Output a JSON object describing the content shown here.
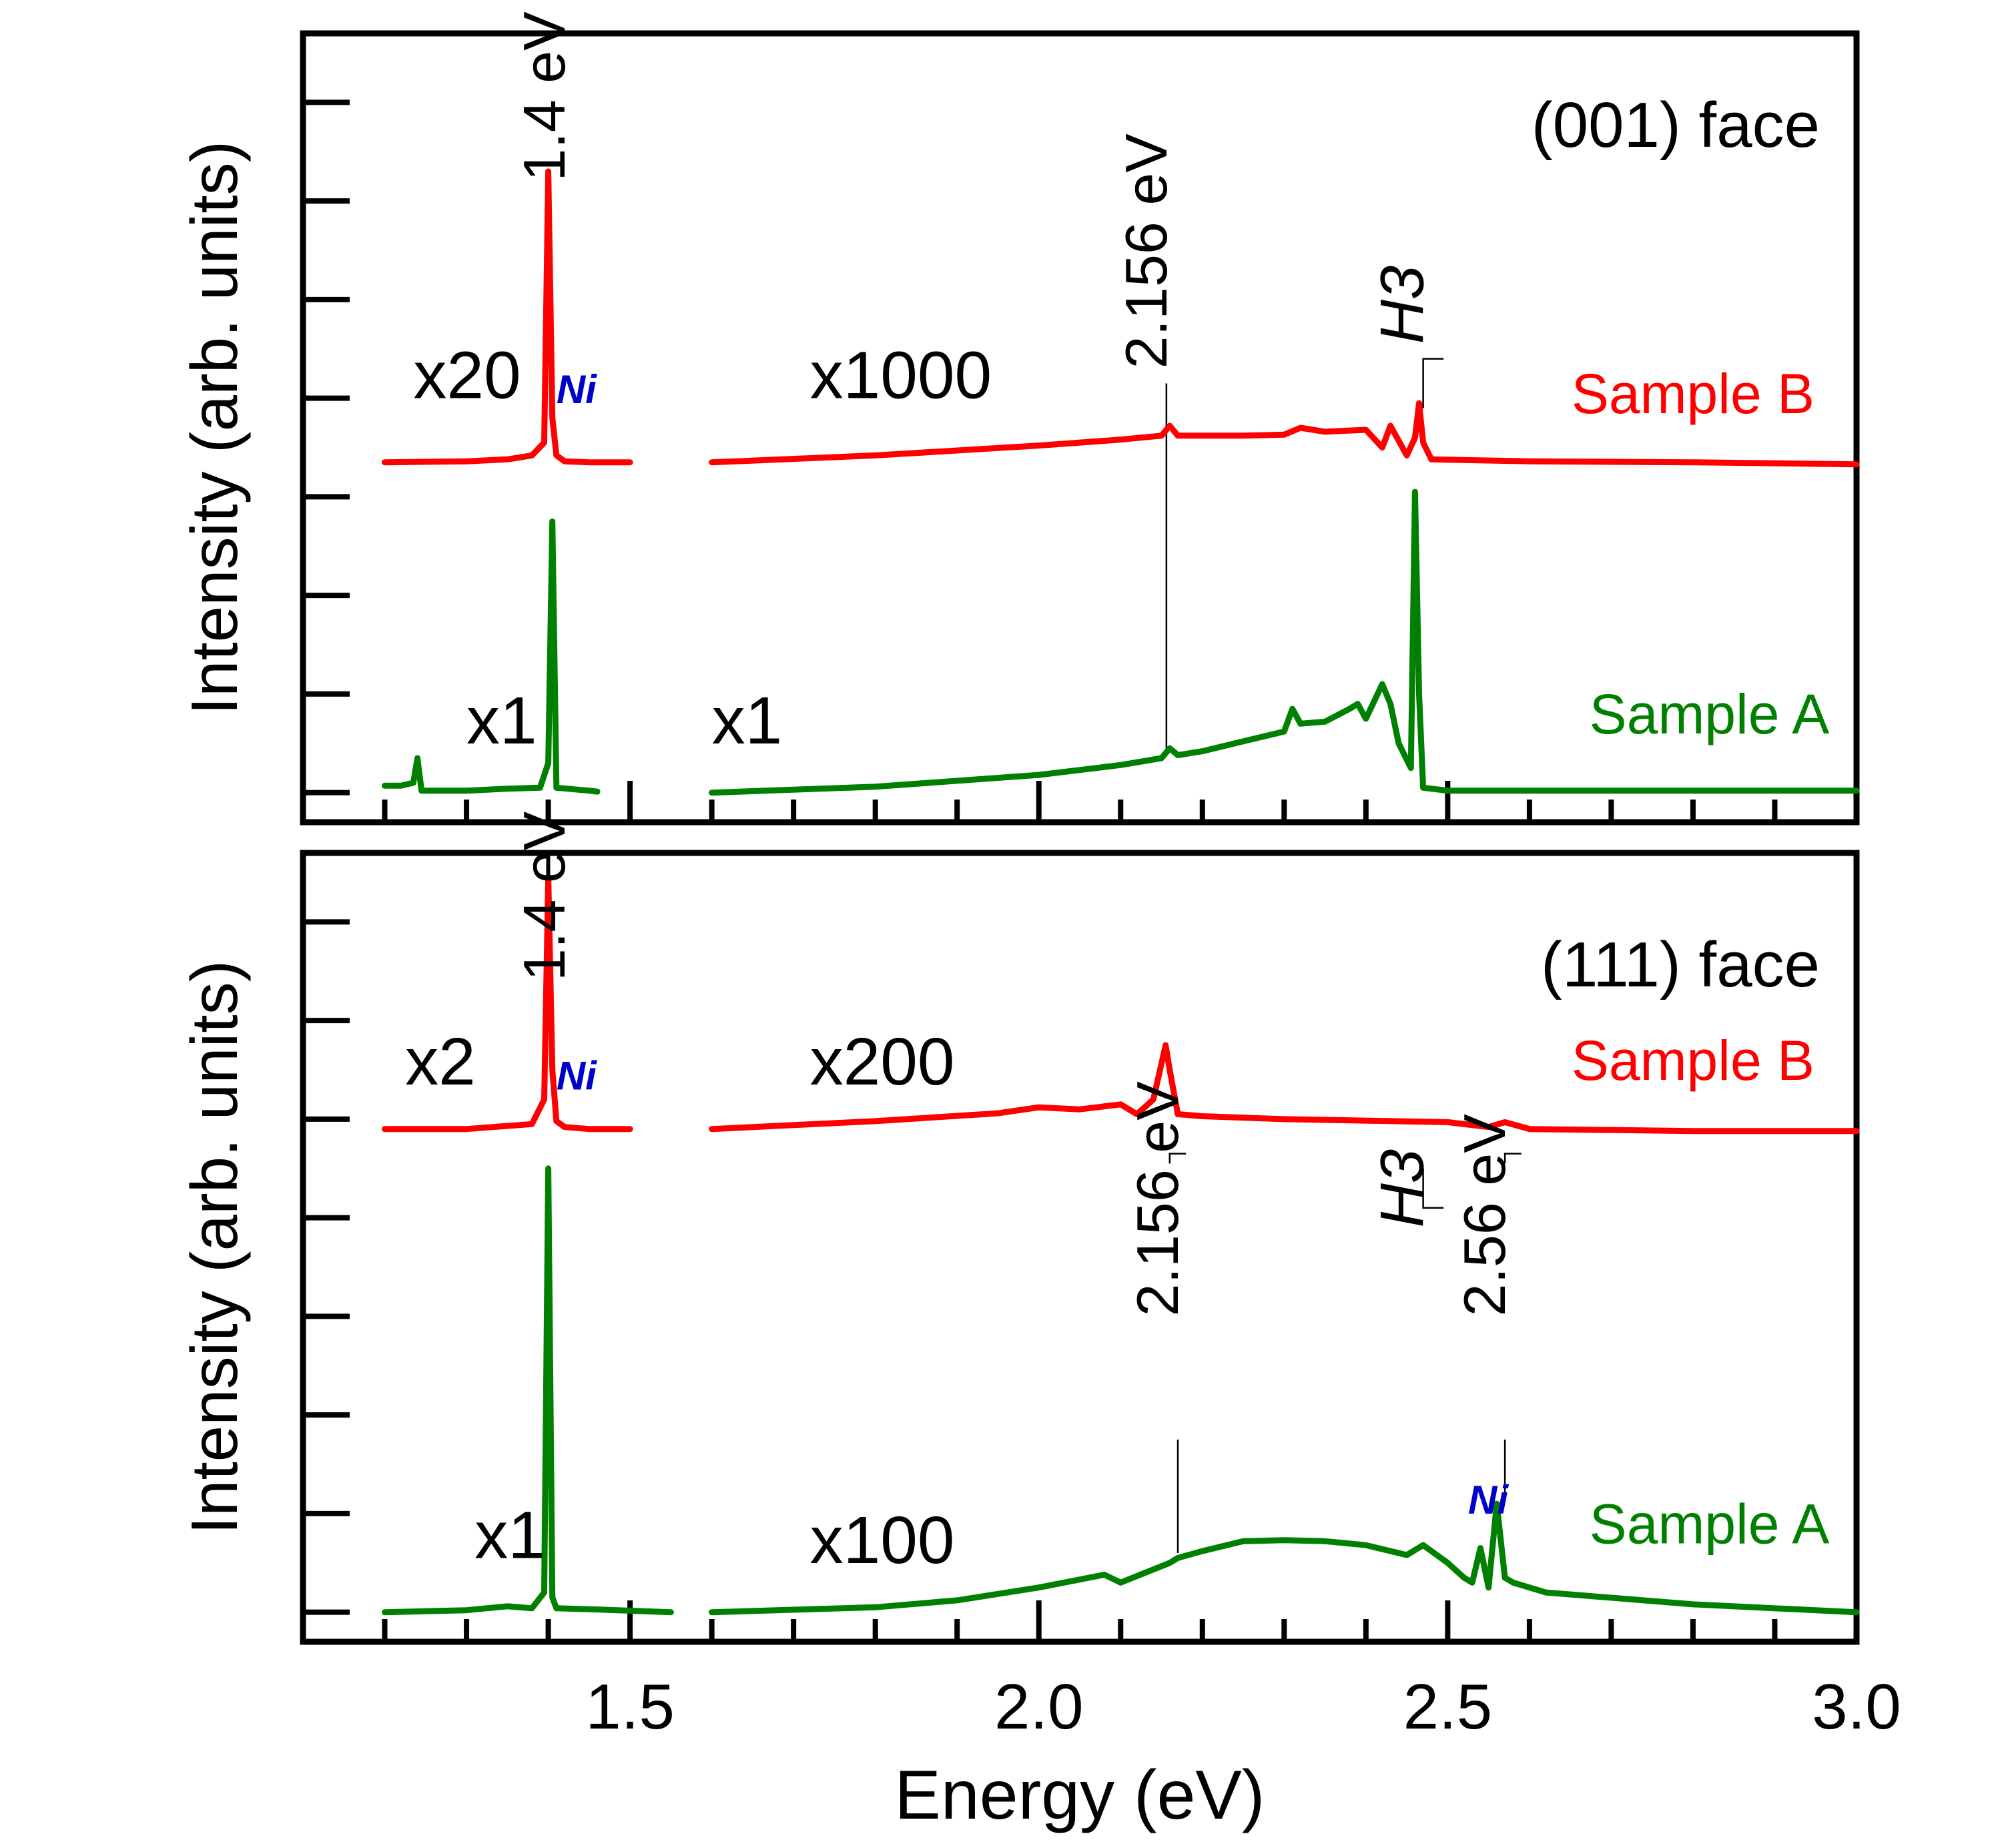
{
  "chart_data": [
    {
      "type": "line",
      "panel": "top",
      "title": "(001) face",
      "xlabel": "",
      "ylabel": "Intensity (arb. units)",
      "xlim": [
        1.1,
        3.0
      ],
      "ylim": [
        -0.3,
        7.7
      ],
      "grid": false,
      "y_ticks_labeled": false,
      "series": [
        {
          "name": "Sample B",
          "color": "#ff0000",
          "segments": [
            {
              "scale_label": "x20",
              "x": [
                1.2,
                1.3,
                1.35,
                1.38,
                1.395,
                1.4,
                1.405,
                1.41,
                1.42,
                1.45,
                1.5
              ],
              "y": [
                3.35,
                3.36,
                3.38,
                3.42,
                3.55,
                6.3,
                3.8,
                3.42,
                3.36,
                3.35,
                3.35
              ]
            },
            {
              "scale_label": "x1000",
              "x": [
                1.6,
                1.8,
                2.0,
                2.1,
                2.15,
                2.16,
                2.17,
                2.25,
                2.3,
                2.32,
                2.35,
                2.4,
                2.42,
                2.43,
                2.45,
                2.46,
                2.465,
                2.47,
                2.48,
                2.6,
                2.8,
                3.0
              ],
              "y": [
                3.35,
                3.42,
                3.52,
                3.58,
                3.62,
                3.72,
                3.62,
                3.62,
                3.63,
                3.7,
                3.66,
                3.68,
                3.5,
                3.72,
                3.42,
                3.6,
                3.95,
                3.55,
                3.38,
                3.36,
                3.35,
                3.33
              ]
            }
          ]
        },
        {
          "name": "Sample A",
          "color": "#008000",
          "segments": [
            {
              "scale_label": "x1",
              "x": [
                1.2,
                1.22,
                1.235,
                1.24,
                1.245,
                1.3,
                1.35,
                1.39,
                1.4,
                1.405,
                1.41,
                1.45,
                1.46
              ],
              "y": [
                0.07,
                0.07,
                0.1,
                0.35,
                0.02,
                0.02,
                0.04,
                0.05,
                0.3,
                2.75,
                0.05,
                0.02,
                0.01
              ]
            },
            {
              "scale_label": "x1",
              "x": [
                1.6,
                1.8,
                2.0,
                2.1,
                2.15,
                2.16,
                2.17,
                2.2,
                2.25,
                2.3,
                2.31,
                2.32,
                2.35,
                2.38,
                2.39,
                2.4,
                2.42,
                2.43,
                2.44,
                2.455,
                2.46,
                2.465,
                2.47,
                2.5,
                2.6,
                2.8,
                3.0
              ],
              "y": [
                0.0,
                0.06,
                0.18,
                0.28,
                0.35,
                0.45,
                0.38,
                0.42,
                0.52,
                0.62,
                0.85,
                0.7,
                0.72,
                0.85,
                0.9,
                0.75,
                1.1,
                0.9,
                0.5,
                0.25,
                3.05,
                1.0,
                0.05,
                0.02,
                0.02,
                0.02,
                0.02
              ]
            }
          ]
        }
      ],
      "annotations": [
        {
          "text": "1.4 eV",
          "x": 1.42,
          "y": 6.2,
          "rotation": -90
        },
        {
          "text": "Ni",
          "x": 1.41,
          "y": 3.95,
          "color": "#0000cc",
          "style": "bold italic"
        },
        {
          "text": "2.156 eV",
          "x": 2.156,
          "y": 4.3,
          "rotation": -90
        },
        {
          "text": "H3",
          "x": 2.47,
          "y": 4.55,
          "rotation": -90,
          "style": "italic"
        },
        {
          "text": "x20",
          "x": 1.235,
          "y": 4.0
        },
        {
          "text": "x1000",
          "x": 1.72,
          "y": 4.0
        },
        {
          "text": "Sample B",
          "x": 2.8,
          "y": 3.85,
          "color": "#ff0000"
        },
        {
          "text": "x1",
          "x": 1.3,
          "y": 0.5
        },
        {
          "text": "x1",
          "x": 1.6,
          "y": 0.5
        },
        {
          "text": "Sample A",
          "x": 2.82,
          "y": 0.6,
          "color": "#008000"
        }
      ]
    },
    {
      "type": "line",
      "panel": "bottom",
      "title": "(111) face",
      "xlabel": "Energy (eV)",
      "ylabel": "Intensity (arb. units)",
      "xlim": [
        1.1,
        3.0
      ],
      "ylim": [
        -0.3,
        7.7
      ],
      "grid": false,
      "y_ticks_labeled": false,
      "x_ticks": [
        1.5,
        2.0,
        2.5,
        3.0
      ],
      "x_tick_labels": [
        "1.5",
        "2.0",
        "2.5",
        "3.0"
      ],
      "series": [
        {
          "name": "Sample B",
          "color": "#ff0000",
          "segments": [
            {
              "scale_label": "x2",
              "x": [
                1.2,
                1.3,
                1.38,
                1.395,
                1.4,
                1.405,
                1.41,
                1.42,
                1.45,
                1.5
              ],
              "y": [
                4.9,
                4.9,
                4.95,
                5.2,
                7.45,
                5.5,
                4.98,
                4.92,
                4.9,
                4.9
              ]
            },
            {
              "scale_label": "x200",
              "x": [
                1.6,
                1.8,
                1.95,
                2.0,
                2.05,
                2.1,
                2.12,
                2.14,
                2.155,
                2.16,
                2.17,
                2.2,
                2.3,
                2.5,
                2.55,
                2.57,
                2.6,
                2.8,
                3.0
              ],
              "y": [
                4.9,
                4.98,
                5.06,
                5.12,
                5.1,
                5.15,
                5.05,
                5.2,
                5.75,
                5.5,
                5.05,
                5.03,
                5.0,
                4.97,
                4.92,
                4.97,
                4.9,
                4.88,
                4.88
              ]
            }
          ]
        },
        {
          "name": "Sample A",
          "color": "#008000",
          "segments": [
            {
              "scale_label": "x1",
              "x": [
                1.2,
                1.3,
                1.35,
                1.38,
                1.395,
                1.4,
                1.405,
                1.41,
                1.45,
                1.55
              ],
              "y": [
                0.0,
                0.02,
                0.06,
                0.04,
                0.2,
                4.5,
                0.15,
                0.04,
                0.03,
                0.0
              ]
            },
            {
              "scale_label": "x100",
              "x": [
                1.6,
                1.8,
                1.9,
                2.0,
                2.08,
                2.1,
                2.16,
                2.17,
                2.2,
                2.25,
                2.3,
                2.35,
                2.4,
                2.45,
                2.47,
                2.5,
                2.52,
                2.53,
                2.54,
                2.55,
                2.56,
                2.57,
                2.58,
                2.62,
                2.8,
                3.0
              ],
              "y": [
                0.0,
                0.05,
                0.12,
                0.25,
                0.38,
                0.3,
                0.5,
                0.55,
                0.62,
                0.72,
                0.73,
                0.72,
                0.68,
                0.58,
                0.68,
                0.5,
                0.35,
                0.3,
                0.65,
                0.25,
                1.1,
                0.35,
                0.3,
                0.2,
                0.08,
                0.0
              ]
            }
          ]
        }
      ],
      "annotations": [
        {
          "text": "1.4 eV",
          "x": 1.42,
          "y": 6.4,
          "rotation": -90
        },
        {
          "text": "Ni",
          "x": 1.41,
          "y": 5.3,
          "color": "#0000cc",
          "style": "bold italic"
        },
        {
          "text": "2.156 eV",
          "x": 2.17,
          "y": 3.0,
          "rotation": -90
        },
        {
          "text": "H3",
          "x": 2.47,
          "y": 3.9,
          "rotation": -90,
          "style": "italic"
        },
        {
          "text": "2.56 eV",
          "x": 2.57,
          "y": 3.0,
          "rotation": -90
        },
        {
          "text": "Ni",
          "x": 2.525,
          "y": 1.0,
          "color": "#0000cc",
          "style": "bold italic"
        },
        {
          "text": "x2",
          "x": 1.225,
          "y": 5.35
        },
        {
          "text": "x200",
          "x": 1.72,
          "y": 5.35
        },
        {
          "text": "Sample B",
          "x": 2.8,
          "y": 5.4,
          "color": "#ff0000"
        },
        {
          "text": "x1",
          "x": 1.31,
          "y": 0.55
        },
        {
          "text": "x100",
          "x": 1.72,
          "y": 0.5
        },
        {
          "text": "Sample A",
          "x": 2.82,
          "y": 0.7,
          "color": "#008000"
        }
      ]
    }
  ]
}
